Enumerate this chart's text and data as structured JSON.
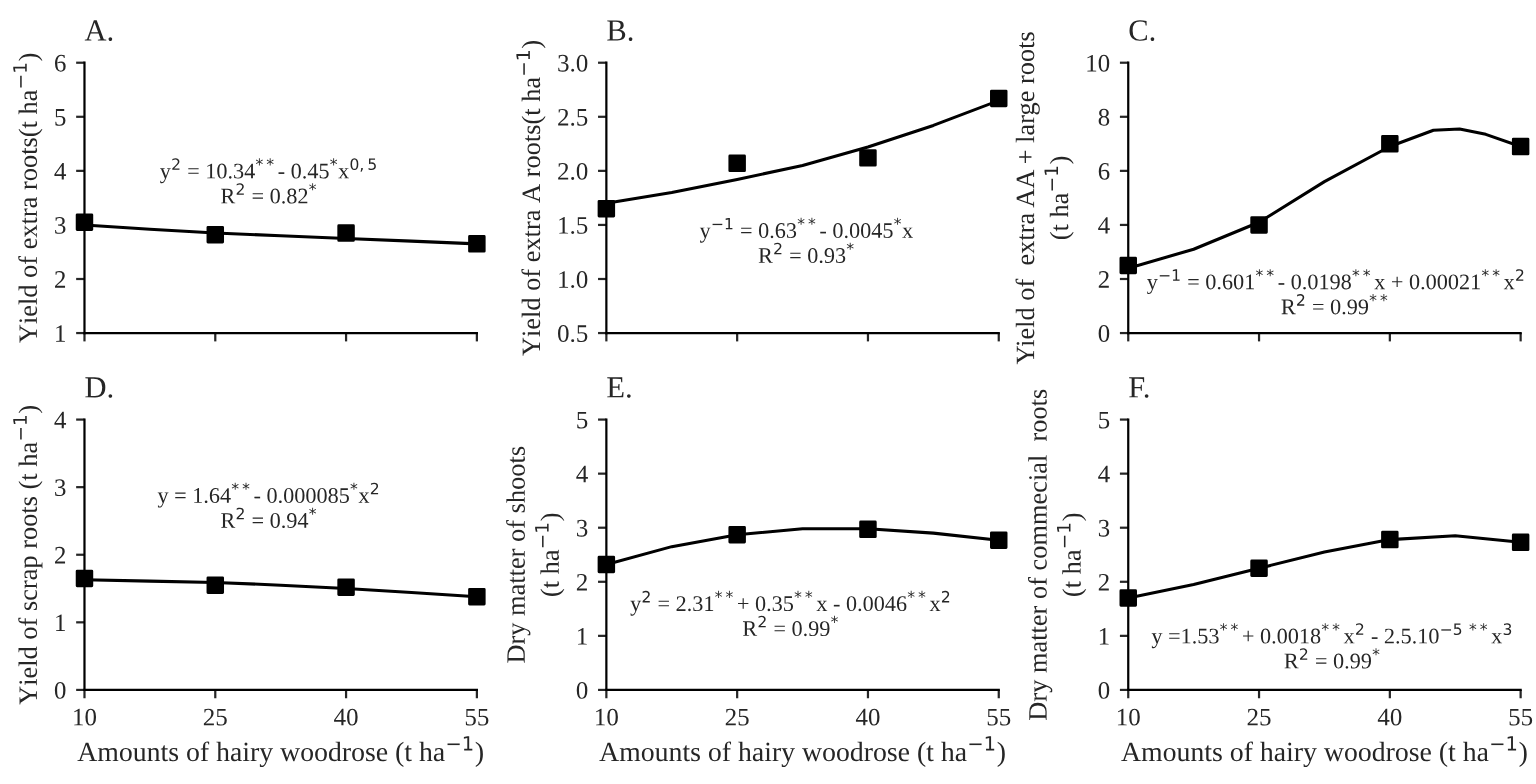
{
  "chart_data": [
    {
      "type": "scatter",
      "title": "A.",
      "ylabel": "Yield of extra roots(t ha$^{−1}$)",
      "x": [
        10,
        25,
        40,
        55
      ],
      "xlim": [
        10,
        55
      ],
      "xticks": [
        10,
        25,
        40,
        55
      ],
      "ylim": [
        1,
        6
      ],
      "yticks": [
        1,
        2,
        3,
        4,
        5,
        6
      ],
      "tick_labels": "y",
      "grid": false,
      "series": [
        {
          "color": "#000000",
          "marker": "square",
          "values": [
            3.05,
            2.82,
            2.85,
            2.65
          ]
        },
        {
          "type": "line",
          "color": "#000000",
          "marker": "none",
          "line_style": "solid",
          "x": [
            10,
            17.5,
            25,
            32.5,
            40,
            47.5,
            55
          ],
          "values": [
            3.0,
            2.92,
            2.85,
            2.8,
            2.75,
            2.7,
            2.65
          ]
        }
      ],
      "annotations": [
        "y$^{2}$ = 10.34$^{**}$- 0.45$^{*}$x$^{0,5}$",
        "R$^{2}$ = 0.82$^{*}$"
      ]
    },
    {
      "type": "scatter",
      "title": "B.",
      "ylabel": "Yield of extra A roots(t ha$^{−1}$)",
      "x": [
        10,
        25,
        40,
        55
      ],
      "xlim": [
        10,
        55
      ],
      "xticks": [
        10,
        25,
        40,
        55
      ],
      "ylim": [
        0.5,
        3.0
      ],
      "yticks": [
        {
          "value": 0.5,
          "label": "0.5"
        },
        {
          "value": 1.0,
          "label": "1.0"
        },
        {
          "value": 1.5,
          "label": "1.5"
        },
        {
          "value": 2.0,
          "label": "2.0"
        },
        {
          "value": 2.5,
          "label": "2.5"
        },
        {
          "value": 3.0,
          "label": "3.0"
        }
      ],
      "tick_labels": "y",
      "grid": false,
      "series": [
        {
          "color": "#000000",
          "marker": "square",
          "values": [
            1.65,
            2.07,
            2.12,
            2.67
          ]
        },
        {
          "type": "line",
          "color": "#000000",
          "marker": "none",
          "line_style": "solid",
          "x": [
            10,
            17.5,
            25,
            32.5,
            40,
            47.5,
            55
          ],
          "values": [
            1.7,
            1.8,
            1.92,
            2.05,
            2.22,
            2.42,
            2.65
          ]
        }
      ],
      "annotations": [
        "y$^{−1}$ = 0.63$^{**}$- 0.0045$^{*}$x",
        "R$^{2}$ = 0.93$^{*}$"
      ]
    },
    {
      "type": "scatter",
      "title": "C.",
      "ylabel": "Yield of  extra AA + large roots\n(t ha$^{−1}$)",
      "x": [
        10,
        25,
        40,
        55
      ],
      "xlim": [
        10,
        55
      ],
      "xticks": [
        10,
        25,
        40,
        55
      ],
      "ylim": [
        0,
        10
      ],
      "yticks": [
        0,
        2,
        4,
        6,
        8,
        10
      ],
      "tick_labels": "y",
      "grid": false,
      "series": [
        {
          "color": "#000000",
          "marker": "square",
          "values": [
            2.5,
            4.0,
            7.0,
            6.9
          ]
        },
        {
          "type": "line",
          "color": "#000000",
          "marker": "none",
          "line_style": "solid",
          "x": [
            10,
            17.5,
            25,
            32.5,
            40,
            45,
            48,
            51,
            55
          ],
          "values": [
            2.4,
            3.1,
            4.1,
            5.6,
            6.9,
            7.5,
            7.55,
            7.35,
            6.9
          ]
        }
      ],
      "annotations": [
        "y$^{−1}$ = 0.601$^{**}$- 0.0198$^{**}$x + 0.00021$^{**}$x$^{2}$",
        "R$^{2}$ = 0.99$^{**}$"
      ]
    },
    {
      "type": "scatter",
      "title": "D.",
      "ylabel": "Yield of scrap roots (t ha$^{−1}$)",
      "xlabel": "Amounts of hairy woodrose (t ha$^{−1}$)",
      "x": [
        10,
        25,
        40,
        55
      ],
      "xlim": [
        10,
        55
      ],
      "xticks": [
        10,
        25,
        40,
        55
      ],
      "ylim": [
        0,
        4
      ],
      "yticks": [
        0,
        1,
        2,
        3,
        4
      ],
      "grid": false,
      "series": [
        {
          "color": "#000000",
          "marker": "square",
          "values": [
            1.65,
            1.55,
            1.52,
            1.38
          ]
        },
        {
          "type": "line",
          "color": "#000000",
          "marker": "none",
          "line_style": "solid",
          "x": [
            10,
            17.5,
            25,
            32.5,
            40,
            47.5,
            55
          ],
          "values": [
            1.63,
            1.61,
            1.59,
            1.55,
            1.5,
            1.44,
            1.38
          ]
        }
      ],
      "annotations": [
        "y = 1.64$^{**}$- 0.000085$^{*}$x$^{2}$",
        "R$^{2}$ = 0.94$^{*}$"
      ]
    },
    {
      "type": "scatter",
      "title": "E.",
      "ylabel": "Dry matter of shoots\n(t ha$^{−1}$)",
      "xlabel": "Amounts of hairy woodrose (t ha$^{−1}$)",
      "x": [
        10,
        25,
        40,
        55
      ],
      "xlim": [
        10,
        55
      ],
      "xticks": [
        10,
        25,
        40,
        55
      ],
      "ylim": [
        0,
        5
      ],
      "yticks": [
        0,
        1,
        2,
        3,
        4,
        5
      ],
      "grid": false,
      "series": [
        {
          "color": "#000000",
          "marker": "square",
          "values": [
            2.32,
            2.87,
            2.97,
            2.77
          ]
        },
        {
          "type": "line",
          "color": "#000000",
          "marker": "none",
          "line_style": "solid",
          "x": [
            10,
            17.5,
            25,
            32.5,
            40,
            47.5,
            55
          ],
          "values": [
            2.32,
            2.65,
            2.87,
            2.98,
            2.98,
            2.9,
            2.77
          ]
        }
      ],
      "annotations": [
        "y$^{2}$ = 2.31$^{**}$+ 0.35$^{**}$x - 0.0046$^{**}$x$^{2}$",
        "R$^{2}$ = 0.99$^{*}$"
      ]
    },
    {
      "type": "scatter",
      "title": "F.",
      "ylabel": "Dry matter of commecial  roots\n(t ha$^{−1}$)",
      "xlabel": "Amounts of hairy woodrose (t ha$^{−1}$)",
      "x": [
        10,
        25,
        40,
        55
      ],
      "xlim": [
        10,
        55
      ],
      "xticks": [
        10,
        25,
        40,
        55
      ],
      "ylim": [
        0,
        5
      ],
      "yticks": [
        0,
        1,
        2,
        3,
        4,
        5
      ],
      "grid": false,
      "series": [
        {
          "color": "#000000",
          "marker": "square",
          "values": [
            1.7,
            2.25,
            2.78,
            2.73
          ]
        },
        {
          "type": "line",
          "color": "#000000",
          "marker": "none",
          "line_style": "solid",
          "x": [
            10,
            17.5,
            25,
            32.5,
            40,
            47.5,
            55
          ],
          "values": [
            1.7,
            1.95,
            2.25,
            2.55,
            2.78,
            2.85,
            2.73
          ]
        }
      ],
      "annotations": [
        "y =1.53$^{**}$+ 0.0018$^{**}$x$^{2}$ - 2.5.10$^{−5}$ $^{**}$x$^{3}$",
        "R$^{2}$ = 0.99$^{*}$"
      ]
    }
  ]
}
